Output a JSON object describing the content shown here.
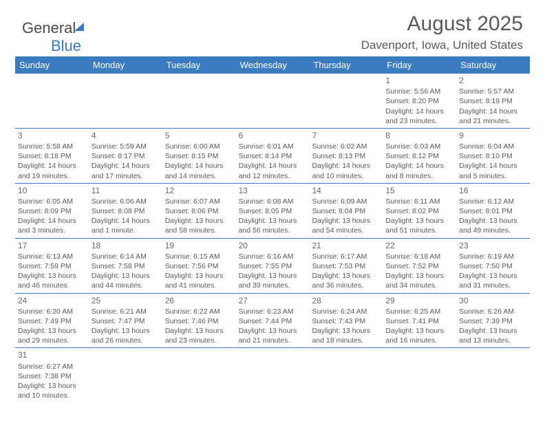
{
  "logo": {
    "text1": "General",
    "text2": "Blue"
  },
  "title": "August 2025",
  "subtitle": "Davenport, Iowa, United States",
  "header_bg": "#3b7bbf",
  "text_color": "#5a5a5a",
  "days_of_week": [
    "Sunday",
    "Monday",
    "Tuesday",
    "Wednesday",
    "Thursday",
    "Friday",
    "Saturday"
  ],
  "weeks": [
    [
      null,
      null,
      null,
      null,
      null,
      {
        "n": "1",
        "sr": "Sunrise: 5:56 AM",
        "ss": "Sunset: 8:20 PM",
        "d1": "Daylight: 14 hours",
        "d2": "and 23 minutes."
      },
      {
        "n": "2",
        "sr": "Sunrise: 5:57 AM",
        "ss": "Sunset: 8:19 PM",
        "d1": "Daylight: 14 hours",
        "d2": "and 21 minutes."
      }
    ],
    [
      {
        "n": "3",
        "sr": "Sunrise: 5:58 AM",
        "ss": "Sunset: 8:18 PM",
        "d1": "Daylight: 14 hours",
        "d2": "and 19 minutes."
      },
      {
        "n": "4",
        "sr": "Sunrise: 5:59 AM",
        "ss": "Sunset: 8:17 PM",
        "d1": "Daylight: 14 hours",
        "d2": "and 17 minutes."
      },
      {
        "n": "5",
        "sr": "Sunrise: 6:00 AM",
        "ss": "Sunset: 8:15 PM",
        "d1": "Daylight: 14 hours",
        "d2": "and 14 minutes."
      },
      {
        "n": "6",
        "sr": "Sunrise: 6:01 AM",
        "ss": "Sunset: 8:14 PM",
        "d1": "Daylight: 14 hours",
        "d2": "and 12 minutes."
      },
      {
        "n": "7",
        "sr": "Sunrise: 6:02 AM",
        "ss": "Sunset: 8:13 PM",
        "d1": "Daylight: 14 hours",
        "d2": "and 10 minutes."
      },
      {
        "n": "8",
        "sr": "Sunrise: 6:03 AM",
        "ss": "Sunset: 8:12 PM",
        "d1": "Daylight: 14 hours",
        "d2": "and 8 minutes."
      },
      {
        "n": "9",
        "sr": "Sunrise: 6:04 AM",
        "ss": "Sunset: 8:10 PM",
        "d1": "Daylight: 14 hours",
        "d2": "and 5 minutes."
      }
    ],
    [
      {
        "n": "10",
        "sr": "Sunrise: 6:05 AM",
        "ss": "Sunset: 8:09 PM",
        "d1": "Daylight: 14 hours",
        "d2": "and 3 minutes."
      },
      {
        "n": "11",
        "sr": "Sunrise: 6:06 AM",
        "ss": "Sunset: 8:08 PM",
        "d1": "Daylight: 14 hours",
        "d2": "and 1 minute."
      },
      {
        "n": "12",
        "sr": "Sunrise: 6:07 AM",
        "ss": "Sunset: 8:06 PM",
        "d1": "Daylight: 13 hours",
        "d2": "and 58 minutes."
      },
      {
        "n": "13",
        "sr": "Sunrise: 6:08 AM",
        "ss": "Sunset: 8:05 PM",
        "d1": "Daylight: 13 hours",
        "d2": "and 56 minutes."
      },
      {
        "n": "14",
        "sr": "Sunrise: 6:09 AM",
        "ss": "Sunset: 8:04 PM",
        "d1": "Daylight: 13 hours",
        "d2": "and 54 minutes."
      },
      {
        "n": "15",
        "sr": "Sunrise: 6:11 AM",
        "ss": "Sunset: 8:02 PM",
        "d1": "Daylight: 13 hours",
        "d2": "and 51 minutes."
      },
      {
        "n": "16",
        "sr": "Sunrise: 6:12 AM",
        "ss": "Sunset: 8:01 PM",
        "d1": "Daylight: 13 hours",
        "d2": "and 49 minutes."
      }
    ],
    [
      {
        "n": "17",
        "sr": "Sunrise: 6:13 AM",
        "ss": "Sunset: 7:59 PM",
        "d1": "Daylight: 13 hours",
        "d2": "and 46 minutes."
      },
      {
        "n": "18",
        "sr": "Sunrise: 6:14 AM",
        "ss": "Sunset: 7:58 PM",
        "d1": "Daylight: 13 hours",
        "d2": "and 44 minutes."
      },
      {
        "n": "19",
        "sr": "Sunrise: 6:15 AM",
        "ss": "Sunset: 7:56 PM",
        "d1": "Daylight: 13 hours",
        "d2": "and 41 minutes."
      },
      {
        "n": "20",
        "sr": "Sunrise: 6:16 AM",
        "ss": "Sunset: 7:55 PM",
        "d1": "Daylight: 13 hours",
        "d2": "and 39 minutes."
      },
      {
        "n": "21",
        "sr": "Sunrise: 6:17 AM",
        "ss": "Sunset: 7:53 PM",
        "d1": "Daylight: 13 hours",
        "d2": "and 36 minutes."
      },
      {
        "n": "22",
        "sr": "Sunrise: 6:18 AM",
        "ss": "Sunset: 7:52 PM",
        "d1": "Daylight: 13 hours",
        "d2": "and 34 minutes."
      },
      {
        "n": "23",
        "sr": "Sunrise: 6:19 AM",
        "ss": "Sunset: 7:50 PM",
        "d1": "Daylight: 13 hours",
        "d2": "and 31 minutes."
      }
    ],
    [
      {
        "n": "24",
        "sr": "Sunrise: 6:20 AM",
        "ss": "Sunset: 7:49 PM",
        "d1": "Daylight: 13 hours",
        "d2": "and 29 minutes."
      },
      {
        "n": "25",
        "sr": "Sunrise: 6:21 AM",
        "ss": "Sunset: 7:47 PM",
        "d1": "Daylight: 13 hours",
        "d2": "and 26 minutes."
      },
      {
        "n": "26",
        "sr": "Sunrise: 6:22 AM",
        "ss": "Sunset: 7:46 PM",
        "d1": "Daylight: 13 hours",
        "d2": "and 23 minutes."
      },
      {
        "n": "27",
        "sr": "Sunrise: 6:23 AM",
        "ss": "Sunset: 7:44 PM",
        "d1": "Daylight: 13 hours",
        "d2": "and 21 minutes."
      },
      {
        "n": "28",
        "sr": "Sunrise: 6:24 AM",
        "ss": "Sunset: 7:43 PM",
        "d1": "Daylight: 13 hours",
        "d2": "and 18 minutes."
      },
      {
        "n": "29",
        "sr": "Sunrise: 6:25 AM",
        "ss": "Sunset: 7:41 PM",
        "d1": "Daylight: 13 hours",
        "d2": "and 16 minutes."
      },
      {
        "n": "30",
        "sr": "Sunrise: 6:26 AM",
        "ss": "Sunset: 7:39 PM",
        "d1": "Daylight: 13 hours",
        "d2": "and 13 minutes."
      }
    ],
    [
      {
        "n": "31",
        "sr": "Sunrise: 6:27 AM",
        "ss": "Sunset: 7:38 PM",
        "d1": "Daylight: 13 hours",
        "d2": "and 10 minutes."
      },
      null,
      null,
      null,
      null,
      null,
      null
    ]
  ]
}
